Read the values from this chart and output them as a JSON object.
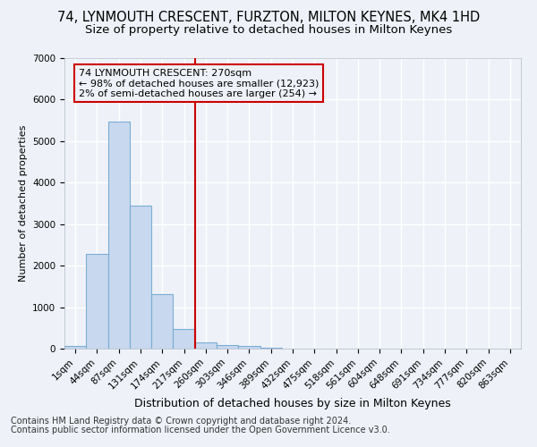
{
  "title": "74, LYNMOUTH CRESCENT, FURZTON, MILTON KEYNES, MK4 1HD",
  "subtitle": "Size of property relative to detached houses in Milton Keynes",
  "xlabel": "Distribution of detached houses by size in Milton Keynes",
  "ylabel": "Number of detached properties",
  "footer_line1": "Contains HM Land Registry data © Crown copyright and database right 2024.",
  "footer_line2": "Contains public sector information licensed under the Open Government Licence v3.0.",
  "bar_labels": [
    "1sqm",
    "44sqm",
    "87sqm",
    "131sqm",
    "174sqm",
    "217sqm",
    "260sqm",
    "303sqm",
    "346sqm",
    "389sqm",
    "432sqm",
    "475sqm",
    "518sqm",
    "561sqm",
    "604sqm",
    "648sqm",
    "691sqm",
    "734sqm",
    "777sqm",
    "820sqm",
    "863sqm"
  ],
  "bar_values": [
    75,
    2280,
    5470,
    3450,
    1320,
    480,
    155,
    90,
    55,
    30,
    0,
    0,
    0,
    0,
    0,
    0,
    0,
    0,
    0,
    0,
    0
  ],
  "bar_color": "#c8d8ee",
  "bar_edge_color": "#7aadd4",
  "ylim": [
    0,
    7000
  ],
  "vline_x": 6,
  "vline_color": "#cc0000",
  "annotation_title": "74 LYNMOUTH CRESCENT: 270sqm",
  "annotation_line2": "← 98% of detached houses are smaller (12,923)",
  "annotation_line3": "2% of semi-detached houses are larger (254) →",
  "background_color": "#eef2f8",
  "grid_color": "#ffffff",
  "title_fontsize": 10.5,
  "subtitle_fontsize": 9.5,
  "xlabel_fontsize": 9,
  "ylabel_fontsize": 8,
  "tick_fontsize": 7.5,
  "footer_fontsize": 7
}
